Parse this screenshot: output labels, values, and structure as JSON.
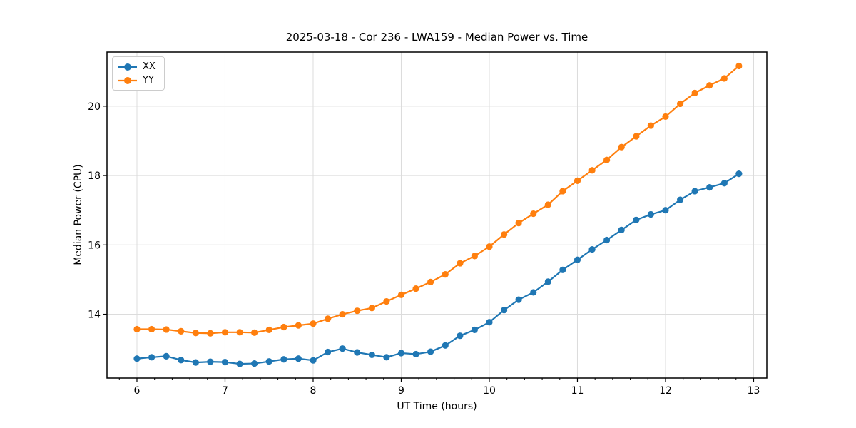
{
  "figure": {
    "title": "2025-03-18 - Cor 236 - LWA159 - Median Power vs. Time",
    "xlabel": "UT Time (hours)",
    "ylabel": "Median Power (CPU)"
  },
  "chart_data": {
    "type": "line",
    "title": "2025-03-18 - Cor 236 - LWA159 - Median Power vs. Time",
    "xlabel": "UT Time (hours)",
    "ylabel": "Median Power (CPU)",
    "xlim": [
      5.66,
      13.15
    ],
    "ylim": [
      12.16,
      21.56
    ],
    "xticks": [
      6,
      7,
      8,
      9,
      10,
      11,
      12,
      13
    ],
    "yticks": [
      14,
      16,
      18,
      20
    ],
    "x_minor_step": 0.2,
    "grid": true,
    "grid_color": "#dcdcdc",
    "spine_color": "#000000",
    "legend_position": "upper-left",
    "x": [
      6.0,
      6.167,
      6.333,
      6.5,
      6.667,
      6.833,
      7.0,
      7.167,
      7.333,
      7.5,
      7.667,
      7.833,
      8.0,
      8.167,
      8.333,
      8.5,
      8.667,
      8.833,
      9.0,
      9.167,
      9.333,
      9.5,
      9.667,
      9.833,
      10.0,
      10.167,
      10.333,
      10.5,
      10.667,
      10.833,
      11.0,
      11.167,
      11.333,
      11.5,
      11.667,
      11.833,
      12.0,
      12.167,
      12.333,
      12.5,
      12.667,
      12.833
    ],
    "series": [
      {
        "name": "XX",
        "color": "#1f77b4",
        "marker": "circle",
        "values": [
          12.72,
          12.76,
          12.79,
          12.68,
          12.61,
          12.63,
          12.62,
          12.57,
          12.58,
          12.64,
          12.7,
          12.72,
          12.67,
          12.91,
          13.01,
          12.9,
          12.83,
          12.76,
          12.88,
          12.85,
          12.92,
          13.1,
          13.38,
          13.55,
          13.77,
          14.12,
          14.42,
          14.63,
          14.94,
          15.28,
          15.57,
          15.87,
          16.14,
          16.43,
          16.72,
          16.88,
          17.0,
          17.3,
          17.55,
          17.66,
          17.78,
          18.05
        ]
      },
      {
        "name": "YY",
        "color": "#ff7f0e",
        "marker": "circle",
        "values": [
          13.57,
          13.57,
          13.56,
          13.51,
          13.46,
          13.45,
          13.48,
          13.48,
          13.47,
          13.55,
          13.63,
          13.68,
          13.73,
          13.87,
          14.0,
          14.1,
          14.18,
          14.37,
          14.56,
          14.74,
          14.93,
          15.15,
          15.47,
          15.68,
          15.95,
          16.3,
          16.63,
          16.9,
          17.16,
          17.55,
          17.85,
          18.15,
          18.45,
          18.82,
          19.13,
          19.44,
          19.7,
          20.07,
          20.38,
          20.6,
          20.8,
          21.16
        ]
      }
    ]
  }
}
